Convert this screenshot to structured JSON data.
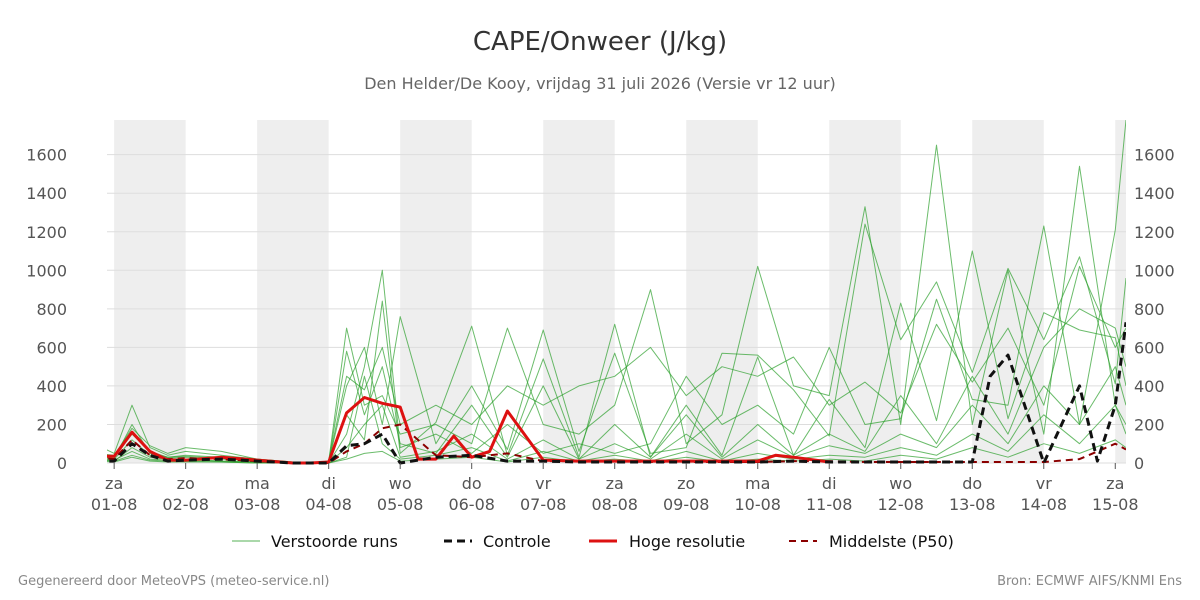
{
  "chart_data": {
    "type": "line",
    "title": "CAPE/Onweer (J/kg)",
    "subtitle": "Den Helder/De Kooy, vrijdag 31 juli 2026 (Versie vr 12 uur)",
    "xlabel": "",
    "ylabel": "",
    "ylim": [
      0,
      1780
    ],
    "xlim": [
      -0.1,
      14.15
    ],
    "yticks": [
      0,
      200,
      400,
      600,
      800,
      1000,
      1200,
      1400,
      1600
    ],
    "grid": true,
    "legend_position": "bottom",
    "xticks": [
      {
        "day": "za",
        "date": "01-08"
      },
      {
        "day": "zo",
        "date": "02-08"
      },
      {
        "day": "ma",
        "date": "03-08"
      },
      {
        "day": "di",
        "date": "04-08"
      },
      {
        "day": "wo",
        "date": "05-08"
      },
      {
        "day": "do",
        "date": "06-08"
      },
      {
        "day": "vr",
        "date": "07-08"
      },
      {
        "day": "za",
        "date": "08-08"
      },
      {
        "day": "zo",
        "date": "09-08"
      },
      {
        "day": "ma",
        "date": "10-08"
      },
      {
        "day": "di",
        "date": "11-08"
      },
      {
        "day": "wo",
        "date": "12-08"
      },
      {
        "day": "do",
        "date": "13-08"
      },
      {
        "day": "vr",
        "date": "14-08"
      },
      {
        "day": "za",
        "date": "15-08"
      }
    ],
    "shaded_days": [
      0,
      2,
      4,
      6,
      8,
      10,
      12,
      14
    ],
    "colors": {
      "ensemble": "#2ca02c",
      "control": "#111111",
      "high_res": "#dd1111",
      "median": "#8b0000",
      "shade": "#eeeeee",
      "grid": "#dddddd"
    },
    "series": [
      {
        "name": "Verstoorde runs",
        "kind": "ensemble",
        "runs": [
          {
            "x": [
              -0.25,
              0,
              0.25,
              0.5,
              0.75,
              1,
              1.5,
              2,
              2.5,
              2.75,
              3,
              3.25,
              3.5,
              3.75,
              4,
              4.5,
              5,
              5.5,
              6,
              6.5,
              7,
              7.5,
              8,
              8.5,
              9,
              9.5,
              10,
              10.5,
              11,
              11.5,
              12,
              12.5,
              13,
              13.5,
              14,
              14.15
            ],
            "y": [
              95,
              50,
              300,
              80,
              40,
              60,
              40,
              20,
              5,
              0,
              10,
              700,
              300,
              350,
              150,
              200,
              100,
              700,
              200,
              150,
              300,
              900,
              100,
              250,
              1020,
              400,
              350,
              1330,
              200,
              1650,
              200,
              1000,
              150,
              1540,
              300,
              200
            ]
          },
          {
            "x": [
              -0.25,
              0,
              0.25,
              0.5,
              0.75,
              1,
              1.5,
              2,
              2.5,
              2.75,
              3,
              3.25,
              3.5,
              3.75,
              4,
              4.5,
              5,
              5.5,
              6,
              6.5,
              7,
              7.5,
              8,
              8.5,
              9,
              9.5,
              10,
              10.5,
              11,
              11.5,
              12,
              12.5,
              13,
              13.5,
              14,
              14.15
            ],
            "y": [
              40,
              30,
              150,
              60,
              30,
              40,
              30,
              10,
              0,
              0,
              0,
              150,
              500,
              1000,
              80,
              150,
              50,
              200,
              50,
              100,
              50,
              100,
              450,
              200,
              300,
              150,
              600,
              200,
              230,
              850,
              330,
              300,
              1230,
              200,
              1210,
              1780
            ]
          },
          {
            "x": [
              -0.25,
              0,
              0.25,
              0.5,
              0.75,
              1,
              1.5,
              2,
              2.5,
              2.75,
              3,
              3.25,
              3.5,
              3.75,
              4,
              4.5,
              5,
              5.5,
              6,
              6.5,
              7,
              7.5,
              8,
              8.5,
              9,
              9.5,
              10,
              10.5,
              11,
              11.5,
              12,
              12.5,
              13,
              13.5,
              14,
              14.15
            ],
            "y": [
              20,
              10,
              80,
              30,
              20,
              20,
              10,
              5,
              0,
              0,
              5,
              400,
              600,
              200,
              760,
              100,
              400,
              70,
              690,
              60,
              570,
              50,
              80,
              570,
              560,
              380,
              140,
              1240,
              640,
              940,
              470,
              1010,
              640,
              1070,
              410,
              960
            ]
          },
          {
            "x": [
              -0.25,
              0,
              0.25,
              0.5,
              0.75,
              1,
              1.5,
              2,
              2.5,
              2.75,
              3,
              3.25,
              3.5,
              3.75,
              4,
              4.5,
              5,
              5.5,
              6,
              6.5,
              7,
              7.5,
              8,
              8.5,
              9,
              9.5,
              10,
              10.5,
              11,
              11.5,
              12,
              12.5,
              13,
              13.5,
              14,
              14.15
            ],
            "y": [
              30,
              20,
              120,
              40,
              25,
              30,
              20,
              10,
              0,
              0,
              0,
              250,
              120,
              840,
              50,
              210,
              710,
              40,
              540,
              30,
              720,
              30,
              300,
              40,
              550,
              40,
              330,
              80,
              830,
              220,
              1100,
              230,
              780,
              690,
              650,
              400
            ]
          },
          {
            "x": [
              -0.25,
              0,
              0.25,
              0.5,
              0.75,
              1,
              1.5,
              2,
              2.5,
              2.75,
              3,
              3.25,
              3.5,
              3.75,
              4,
              4.5,
              5,
              5.5,
              6,
              6.5,
              7,
              7.5,
              8,
              8.5,
              9,
              9.5,
              10,
              10.5,
              11,
              11.5,
              12,
              12.5,
              13,
              13.5,
              14,
              14.15
            ],
            "y": [
              25,
              15,
              60,
              20,
              15,
              15,
              10,
              5,
              0,
              0,
              0,
              80,
              200,
              300,
              30,
              60,
              150,
              20,
              120,
              20,
              100,
              20,
              150,
              20,
              120,
              30,
              90,
              50,
              150,
              80,
              300,
              100,
              400,
              200,
              500,
              300
            ]
          },
          {
            "x": [
              -0.25,
              0,
              0.25,
              0.5,
              0.75,
              1,
              1.5,
              2,
              2.5,
              2.75,
              3,
              3.25,
              3.5,
              3.75,
              4,
              4.5,
              5,
              5.5,
              6,
              6.5,
              7,
              7.5,
              8,
              8.5,
              9,
              9.5,
              10,
              10.5,
              11,
              11.5,
              12,
              12.5,
              13,
              13.5,
              14,
              14.15
            ],
            "y": [
              15,
              10,
              40,
              15,
              10,
              10,
              5,
              0,
              0,
              0,
              0,
              30,
              450,
              100,
              20,
              40,
              80,
              10,
              60,
              10,
              40,
              10,
              60,
              10,
              50,
              20,
              40,
              30,
              80,
              40,
              150,
              60,
              250,
              100,
              300,
              150
            ]
          },
          {
            "x": [
              -0.25,
              0,
              0.25,
              0.5,
              0.75,
              1,
              1.5,
              2,
              2.5,
              2.75,
              3,
              3.25,
              3.5,
              3.75,
              4,
              4.5,
              5,
              5.5,
              6,
              6.5,
              7,
              7.5,
              8,
              8.5,
              9,
              9.5,
              10,
              10.5,
              11,
              11.5,
              12,
              12.5,
              13,
              13.5,
              14,
              14.15
            ],
            "y": [
              35,
              25,
              200,
              50,
              30,
              35,
              25,
              10,
              0,
              0,
              5,
              580,
              250,
              500,
              100,
              50,
              300,
              30,
              400,
              20,
              200,
              30,
              250,
              30,
              200,
              40,
              150,
              60,
              350,
              100,
              450,
              150,
              600,
              800,
              700,
              500
            ]
          },
          {
            "x": [
              -0.25,
              0,
              0.25,
              0.5,
              0.75,
              1,
              1.5,
              2,
              2.5,
              2.75,
              3,
              3.25,
              3.5,
              3.75,
              4,
              4.5,
              5,
              5.5,
              6,
              6.5,
              7,
              7.5,
              8,
              8.5,
              9,
              9.5,
              10,
              10.5,
              11,
              11.5,
              12,
              12.5,
              13,
              13.5,
              14,
              14.15
            ],
            "y": [
              10,
              5,
              30,
              10,
              5,
              5,
              5,
              0,
              0,
              0,
              0,
              20,
              50,
              60,
              10,
              20,
              30,
              5,
              30,
              5,
              20,
              5,
              30,
              5,
              20,
              10,
              20,
              10,
              40,
              20,
              80,
              30,
              100,
              50,
              120,
              80
            ]
          },
          {
            "x": [
              -0.25,
              0,
              0.25,
              0.5,
              0.75,
              1,
              1.5,
              2,
              2.5,
              2.75,
              3,
              3.25,
              3.5,
              3.75,
              4,
              4.5,
              5,
              5.5,
              6,
              6.5,
              7,
              7.5,
              8,
              8.5,
              9,
              9.5,
              10,
              10.5,
              11,
              11.5,
              12,
              12.5,
              13,
              13.5,
              14,
              14.15
            ],
            "y": [
              50,
              40,
              180,
              90,
              50,
              80,
              60,
              20,
              5,
              0,
              10,
              450,
              380,
              600,
              200,
              300,
              200,
              400,
              300,
              400,
              450,
              600,
              350,
              500,
              450,
              550,
              300,
              420,
              260,
              720,
              420,
              700,
              300,
              1020,
              600,
              700
            ]
          }
        ]
      },
      {
        "name": "Controle",
        "kind": "control",
        "x": [
          -0.25,
          0,
          0.25,
          0.5,
          0.75,
          1,
          1.5,
          2,
          2.5,
          2.75,
          3,
          3.25,
          3.5,
          3.75,
          4,
          4.5,
          5,
          5.5,
          6,
          6.5,
          7,
          7.5,
          8,
          8.5,
          9,
          9.5,
          10,
          10.5,
          11,
          11.5,
          12,
          12.25,
          12.5,
          13,
          13.25,
          13.5,
          13.75,
          14,
          14.15
        ],
        "y": [
          10,
          10,
          100,
          40,
          10,
          15,
          20,
          10,
          0,
          0,
          0,
          90,
          100,
          150,
          0,
          30,
          40,
          10,
          10,
          5,
          5,
          5,
          5,
          5,
          5,
          10,
          5,
          5,
          5,
          5,
          5,
          450,
          560,
          0,
          200,
          400,
          10,
          300,
          730
        ]
      },
      {
        "name": "Hoge resolutie",
        "kind": "high_res",
        "x": [
          -0.25,
          0,
          0.25,
          0.5,
          0.75,
          1,
          1.5,
          2,
          2.5,
          2.75,
          3,
          3.25,
          3.5,
          3.75,
          4,
          4.25,
          4.5,
          4.75,
          5,
          5.25,
          5.5,
          6,
          6.5,
          7,
          7.5,
          8,
          8.5,
          9,
          9.25,
          9.5,
          10
        ],
        "y": [
          35,
          35,
          160,
          60,
          15,
          15,
          30,
          15,
          0,
          0,
          5,
          260,
          340,
          310,
          290,
          20,
          20,
          140,
          30,
          60,
          270,
          15,
          10,
          10,
          10,
          10,
          10,
          10,
          40,
          30,
          5
        ]
      },
      {
        "name": "Middelste (P50)",
        "kind": "median",
        "x": [
          -0.25,
          0,
          0.25,
          0.5,
          0.75,
          1,
          1.5,
          2,
          2.5,
          2.75,
          3,
          3.25,
          3.5,
          3.75,
          4,
          4.5,
          5,
          5.5,
          6,
          6.5,
          7,
          7.5,
          8,
          8.5,
          9,
          9.5,
          10,
          10.5,
          11,
          11.5,
          12,
          12.5,
          13,
          13.5,
          14,
          14.15
        ],
        "y": [
          30,
          20,
          120,
          40,
          20,
          25,
          20,
          10,
          0,
          0,
          0,
          60,
          100,
          180,
          200,
          40,
          30,
          50,
          10,
          10,
          10,
          5,
          5,
          5,
          5,
          10,
          10,
          5,
          5,
          5,
          5,
          5,
          5,
          20,
          100,
          70
        ]
      }
    ]
  },
  "footer": {
    "left": "Gegenereerd door MeteoVPS (meteo-service.nl)",
    "right": "Bron: ECMWF AIFS/KNMI Ens"
  }
}
